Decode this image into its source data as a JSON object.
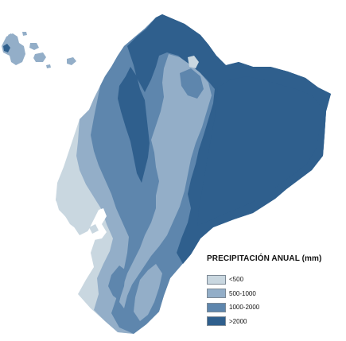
{
  "legend": {
    "title": "PRECIPITACIÓN ANUAL (mm)",
    "classes": [
      {
        "label": "<500",
        "color": "#c9d7e0"
      },
      {
        "label": "500-1000",
        "color": "#93aec8"
      },
      {
        "label": "1000-2000",
        "color": "#5e86ad"
      },
      {
        "label": ">2000",
        "color": "#2f5f8d"
      }
    ]
  }
}
